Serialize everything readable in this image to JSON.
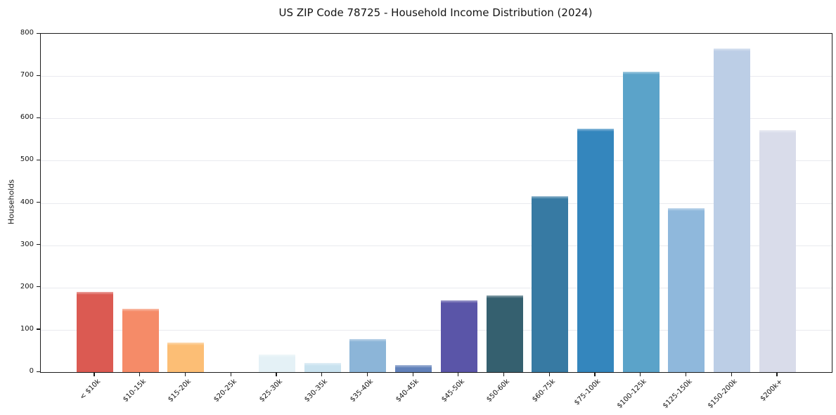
{
  "chart_data": {
    "type": "bar",
    "title": "US ZIP Code 78725 - Household Income Distribution (2024)",
    "ylabel": "Households",
    "xlabel": "",
    "categories": [
      "< $10k",
      "$10-15k",
      "$15-20k",
      "$20-25k",
      "$25-30k",
      "$30-35k",
      "$35-40k",
      "$40-45k",
      "$45-50k",
      "$50-60k",
      "$60-75k",
      "$75-100k",
      "$100-125k",
      "$125-150k",
      "$150-200k",
      "$200k+"
    ],
    "values": [
      190,
      150,
      70,
      0,
      42,
      22,
      79,
      17,
      170,
      181,
      416,
      575,
      710,
      388,
      765,
      572
    ],
    "bar_colors": [
      "#db5a52",
      "#f58b68",
      "#fcbe75",
      "#fde4a9",
      "#e4f1f6",
      "#c9e2ef",
      "#8cb5d8",
      "#6181ba",
      "#5a55a8",
      "#35606f",
      "#377aa3",
      "#3486bd",
      "#5ba3c9",
      "#8fb8dc",
      "#bccee6",
      "#d9dcea"
    ],
    "ylim": [
      0,
      800
    ],
    "ytick_interval": 100,
    "yticks": [
      0,
      100,
      200,
      300,
      400,
      500,
      600,
      700,
      800
    ],
    "grid": "horizontal",
    "legend": "none",
    "background_color": "#ffffff",
    "grid_color": "#e9eaef",
    "spine_color": "#1c1c1c",
    "text_color": "#141414"
  }
}
